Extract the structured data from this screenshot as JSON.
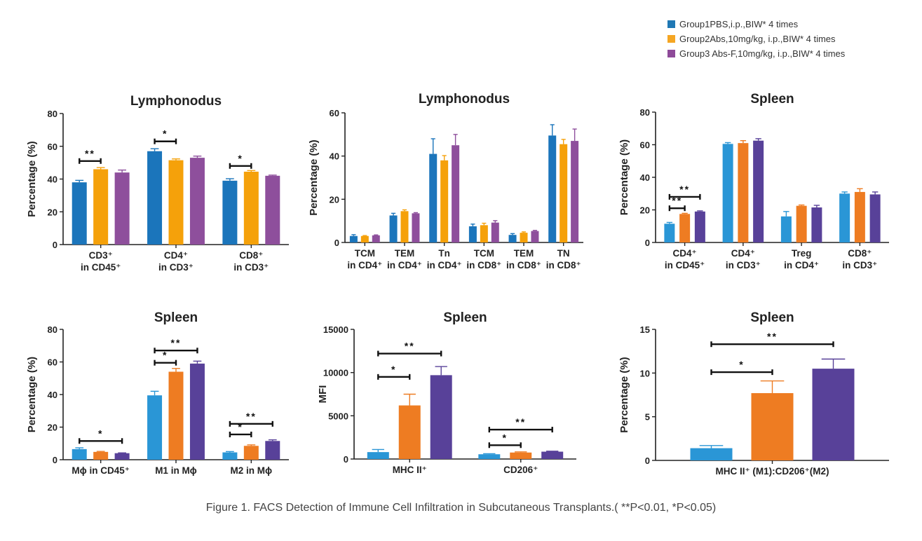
{
  "legend": [
    {
      "label": "Group1PBS,i.p.,BIW* 4 times",
      "color": "#1f78b4"
    },
    {
      "label": "Group2Abs,10mg/kg, i.p.,BIW* 4 times",
      "color": "#f5a623"
    },
    {
      "label": "Group3 Abs-F,10mg/kg, i.p.,BIW* 4 times",
      "color": "#8e4a99"
    }
  ],
  "caption": "Figure 1. FACS Detection of Immune Cell Infiltration in Subcutaneous Transplants.( **P<0.01, *P<0.05)",
  "chart_data": [
    {
      "type": "bar",
      "title": "Lymphonodus",
      "ylabel": "Percentage (%)",
      "ylim": [
        0,
        80
      ],
      "yticks": [
        0,
        20,
        40,
        60,
        80
      ],
      "colors": [
        "#1b75bb",
        "#f5a10a",
        "#8e4f9c"
      ],
      "categories": [
        [
          "CD3⁺",
          "in CD45⁺"
        ],
        [
          "CD4⁺",
          "in CD3⁺"
        ],
        [
          "CD8⁺",
          "in CD3⁺"
        ]
      ],
      "series": [
        {
          "values": [
            38,
            57,
            39
          ],
          "errors": [
            1.2,
            1.5,
            1.2
          ]
        },
        {
          "values": [
            46,
            51.5,
            44.5
          ],
          "errors": [
            1.0,
            0.8,
            0.7
          ]
        },
        {
          "values": [
            44,
            53,
            42
          ],
          "errors": [
            1.5,
            1.0,
            0.4
          ]
        }
      ],
      "significance": [
        {
          "category": 0,
          "from": 0,
          "to": 1,
          "label": "**",
          "y": 51
        },
        {
          "category": 1,
          "from": 0,
          "to": 1,
          "label": "*",
          "y": 63
        },
        {
          "category": 2,
          "from": 0,
          "to": 1,
          "label": "*",
          "y": 48
        }
      ]
    },
    {
      "type": "bar",
      "title": "Lymphonodus",
      "ylabel": "Percentage (%)",
      "ylim": [
        0,
        60
      ],
      "yticks": [
        0,
        20,
        40,
        60
      ],
      "colors": [
        "#1b75bb",
        "#f5a10a",
        "#8e4f9c"
      ],
      "categories": [
        [
          "TCM",
          "in CD4⁺"
        ],
        [
          "TEM",
          "in CD4⁺"
        ],
        [
          "Tn",
          "in CD4⁺"
        ],
        [
          "TCM",
          "in CD8⁺"
        ],
        [
          "TEM",
          "in CD8⁺"
        ],
        [
          "TN",
          "in CD8⁺"
        ]
      ],
      "series": [
        {
          "values": [
            3,
            12.5,
            41,
            7.5,
            3.5,
            49.5
          ],
          "errors": [
            0.6,
            1.0,
            7,
            1.0,
            0.6,
            5
          ]
        },
        {
          "values": [
            3,
            14.5,
            38,
            8,
            4.5,
            45.5
          ],
          "errors": [
            0.2,
            0.6,
            2.2,
            0.9,
            0.4,
            2.2
          ]
        },
        {
          "values": [
            3.3,
            13.5,
            45,
            9.2,
            5.3,
            47
          ],
          "errors": [
            0.2,
            0.3,
            5,
            0.9,
            0.3,
            5.5
          ]
        }
      ],
      "significance": []
    },
    {
      "type": "bar",
      "title": "Spleen",
      "ylabel": "Percentage (%)",
      "ylim": [
        0,
        80
      ],
      "yticks": [
        0,
        20,
        40,
        60,
        80
      ],
      "colors": [
        "#2a96d6",
        "#ee7c22",
        "#584199"
      ],
      "categories": [
        [
          "CD4⁺",
          "in CD45⁺"
        ],
        [
          "CD4⁺",
          "in CD3⁺"
        ],
        [
          "Treg",
          "in CD4⁺"
        ],
        [
          "CD8⁺",
          "in CD3⁺"
        ]
      ],
      "series": [
        {
          "values": [
            11.5,
            60.5,
            16,
            30
          ],
          "errors": [
            0.8,
            0.8,
            3,
            1
          ]
        },
        {
          "values": [
            17.5,
            61,
            22.5,
            31
          ],
          "errors": [
            0.4,
            1.5,
            0.5,
            2
          ]
        },
        {
          "values": [
            19,
            62.5,
            21.5,
            29.5
          ],
          "errors": [
            0.4,
            1.2,
            1.3,
            1.5
          ]
        }
      ],
      "significance": [
        {
          "category": 0,
          "from": 0,
          "to": 2,
          "label": "**",
          "y": 28
        },
        {
          "category": 0,
          "from": 0,
          "to": 1,
          "label": "**",
          "y": 21
        }
      ]
    },
    {
      "type": "bar",
      "title": "Spleen",
      "ylabel": "Percentage (%)",
      "ylim": [
        0,
        80
      ],
      "yticks": [
        0,
        20,
        40,
        60,
        80
      ],
      "colors": [
        "#2a96d6",
        "#ee7c22",
        "#584199"
      ],
      "categories": [
        [
          "Mɸ in CD45⁺"
        ],
        [
          "M1 in Mɸ"
        ],
        [
          "M2 in Mɸ"
        ]
      ],
      "series": [
        {
          "values": [
            6.5,
            39.5,
            4.5
          ],
          "errors": [
            0.8,
            2.5,
            0.5
          ]
        },
        {
          "values": [
            4.8,
            54,
            8.5
          ],
          "errors": [
            0.3,
            2,
            0.6
          ]
        },
        {
          "values": [
            4,
            59,
            11.5
          ],
          "errors": [
            0.2,
            1.5,
            0.7
          ]
        }
      ],
      "significance": [
        {
          "category": 0,
          "from": 0,
          "to": 2,
          "label": "*",
          "y": 11.5
        },
        {
          "category": 1,
          "from": 0,
          "to": 2,
          "label": "**",
          "y": 67
        },
        {
          "category": 1,
          "from": 0,
          "to": 1,
          "label": "*",
          "y": 59.5
        },
        {
          "category": 2,
          "from": 0,
          "to": 2,
          "label": "**",
          "y": 22
        },
        {
          "category": 2,
          "from": 0,
          "to": 1,
          "label": "*",
          "y": 15.5
        }
      ]
    },
    {
      "type": "bar",
      "title": "Spleen",
      "ylabel": "MFI",
      "ylim": [
        0,
        15000
      ],
      "yticks": [
        0,
        5000,
        10000,
        15000
      ],
      "colors": [
        "#2a96d6",
        "#ee7c22",
        "#584199"
      ],
      "categories": [
        [
          "MHC II⁺"
        ],
        [
          "CD206⁺"
        ]
      ],
      "series": [
        {
          "values": [
            800,
            550
          ],
          "errors": [
            300,
            60
          ]
        },
        {
          "values": [
            6200,
            750
          ],
          "errors": [
            1300,
            80
          ]
        },
        {
          "values": [
            9700,
            850
          ],
          "errors": [
            1000,
            60
          ]
        }
      ],
      "significance": [
        {
          "category": 0,
          "from": 0,
          "to": 2,
          "label": "**",
          "y": 12200
        },
        {
          "category": 0,
          "from": 0,
          "to": 1,
          "label": "*",
          "y": 9500
        },
        {
          "category": 1,
          "from": 0,
          "to": 2,
          "label": "**",
          "y": 3400
        },
        {
          "category": 1,
          "from": 0,
          "to": 1,
          "label": "*",
          "y": 1600
        }
      ]
    },
    {
      "type": "bar",
      "title": "Spleen",
      "ylabel": "Percentage (%)",
      "ylim": [
        0,
        15
      ],
      "yticks": [
        0,
        5,
        10,
        15
      ],
      "colors": [
        "#2a96d6",
        "#ee7c22",
        "#584199"
      ],
      "categories": [
        [
          "MHC II⁺ (M1):CD206⁺(M2)"
        ]
      ],
      "series": [
        {
          "values": [
            1.4
          ],
          "errors": [
            0.3
          ]
        },
        {
          "values": [
            7.7
          ],
          "errors": [
            1.4
          ]
        },
        {
          "values": [
            10.5
          ],
          "errors": [
            1.1
          ]
        }
      ],
      "significance": [
        {
          "category": 0,
          "from": 0,
          "to": 2,
          "label": "**",
          "y": 13.3
        },
        {
          "category": 0,
          "from": 0,
          "to": 1,
          "label": "*",
          "y": 10.1
        }
      ]
    }
  ]
}
